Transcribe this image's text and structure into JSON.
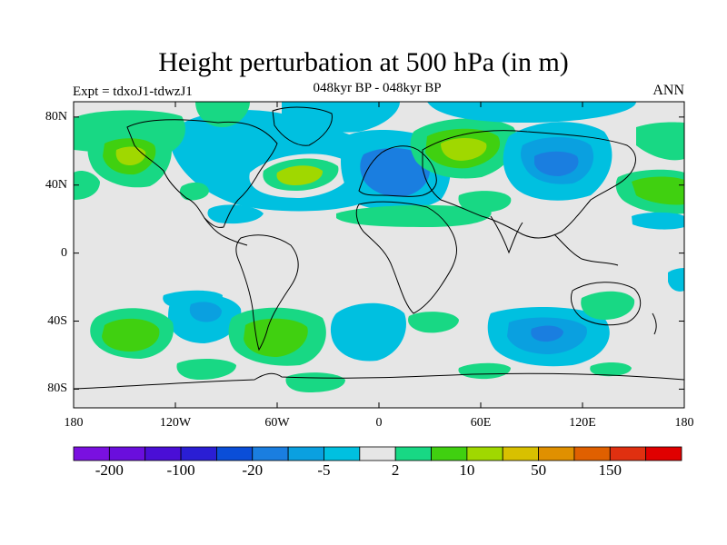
{
  "title": "Height perturbation at 500 hPa (in m)",
  "subtitle": "048kyr BP - 048kyr BP",
  "left_label": "Expt = tdxoJ1-tdwzJ1",
  "right_label": "ANN",
  "lat_ticks": [
    {
      "value": 80,
      "label": "80N"
    },
    {
      "value": 40,
      "label": "40N"
    },
    {
      "value": 0,
      "label": "0"
    },
    {
      "value": -40,
      "label": "40S"
    },
    {
      "value": -80,
      "label": "80S"
    }
  ],
  "lon_ticks": [
    {
      "value": -180,
      "label": "180"
    },
    {
      "value": -120,
      "label": "120W"
    },
    {
      "value": -60,
      "label": "60W"
    },
    {
      "value": 0,
      "label": "0"
    },
    {
      "value": 60,
      "label": "60E"
    },
    {
      "value": 120,
      "label": "120E"
    },
    {
      "value": 180,
      "label": "180"
    }
  ],
  "colorbar": {
    "colors": [
      "#7a10e0",
      "#6a0edd",
      "#4a0ed6",
      "#2a1ed4",
      "#0a4ed8",
      "#1a7ee0",
      "#0aa0e0",
      "#00c0e0",
      "#e6e6e6",
      "#18d884",
      "#40d010",
      "#a0d800",
      "#d8c000",
      "#e09000",
      "#e06000",
      "#e03010",
      "#e00000"
    ],
    "tick_labels": [
      {
        "after_box": 1,
        "label": "-200"
      },
      {
        "after_box": 3,
        "label": "-100"
      },
      {
        "after_box": 5,
        "label": "-20"
      },
      {
        "after_box": 7,
        "label": "-5"
      },
      {
        "after_box": 9,
        "label": "2"
      },
      {
        "after_box": 11,
        "label": "10"
      },
      {
        "after_box": 13,
        "label": "50"
      },
      {
        "after_box": 15,
        "label": "150"
      }
    ]
  },
  "field_colors": {
    "background": "#e6e6e6",
    "cyan": "#00c0e0",
    "light_blue": "#0aa0e0",
    "blue": "#1a7ee0",
    "deep_blue": "#0a4ed8",
    "green": "#18d884",
    "bright_green": "#40d010",
    "yellow_green": "#a0d800"
  }
}
